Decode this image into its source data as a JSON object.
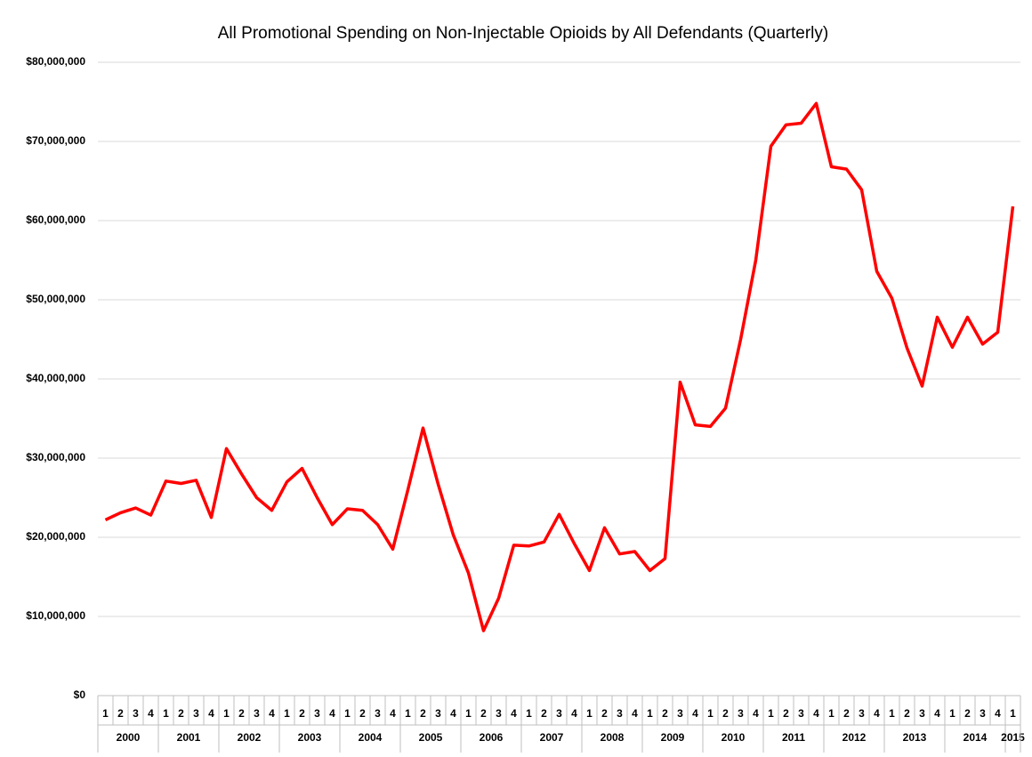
{
  "chart_data": {
    "type": "line",
    "title": "All Promotional Spending on Non-Injectable Opioids by All Defendants (Quarterly)",
    "categories": [
      "1",
      "2",
      "3",
      "4",
      "1",
      "2",
      "3",
      "4",
      "1",
      "2",
      "3",
      "4",
      "1",
      "2",
      "3",
      "4",
      "1",
      "2",
      "3",
      "4",
      "1",
      "2",
      "3",
      "4",
      "1",
      "2",
      "3",
      "4",
      "1",
      "2",
      "3",
      "4",
      "1",
      "2",
      "3",
      "4",
      "1",
      "2",
      "3",
      "4",
      "1",
      "2",
      "3",
      "4",
      "1",
      "2",
      "3",
      "4",
      "1",
      "2",
      "3",
      "4",
      "1",
      "2",
      "3",
      "4",
      "1",
      "2",
      "3",
      "4",
      "1"
    ],
    "groups": [
      "2000",
      "2001",
      "2002",
      "2003",
      "2004",
      "2005",
      "2006",
      "2007",
      "2008",
      "2009",
      "2010",
      "2011",
      "2012",
      "2013",
      "2014",
      "2015"
    ],
    "color": "#ff0000",
    "values": [
      22200000,
      23100000,
      23700000,
      22800000,
      27100000,
      26800000,
      27200000,
      22500000,
      31200000,
      28000000,
      25000000,
      23400000,
      27000000,
      28700000,
      25000000,
      21600000,
      23600000,
      23400000,
      21600000,
      18500000,
      26000000,
      33800000,
      26700000,
      20300000,
      15500000,
      8200000,
      12300000,
      19000000,
      18900000,
      19400000,
      22900000,
      19200000,
      15800000,
      21200000,
      17900000,
      18200000,
      15800000,
      17300000,
      39600000,
      34200000,
      34000000,
      36300000,
      45000000,
      55000000,
      69400000,
      72100000,
      72300000,
      74800000,
      66800000,
      66500000,
      63900000,
      53600000,
      50200000,
      43900000,
      39100000,
      47800000,
      44000000,
      47800000,
      44400000,
      45900000,
      61800000
    ],
    "ylim": [
      0,
      80000000
    ],
    "yticks": [
      {
        "value": 0,
        "label": "$0"
      },
      {
        "value": 10000000,
        "label": "$10,000,000"
      },
      {
        "value": 20000000,
        "label": "$20,000,000"
      },
      {
        "value": 30000000,
        "label": "$30,000,000"
      },
      {
        "value": 40000000,
        "label": "$40,000,000"
      },
      {
        "value": 50000000,
        "label": "$50,000,000"
      },
      {
        "value": 60000000,
        "label": "$60,000,000"
      },
      {
        "value": 70000000,
        "label": "$70,000,000"
      },
      {
        "value": 80000000,
        "label": "$80,000,000"
      }
    ],
    "grid": true
  }
}
